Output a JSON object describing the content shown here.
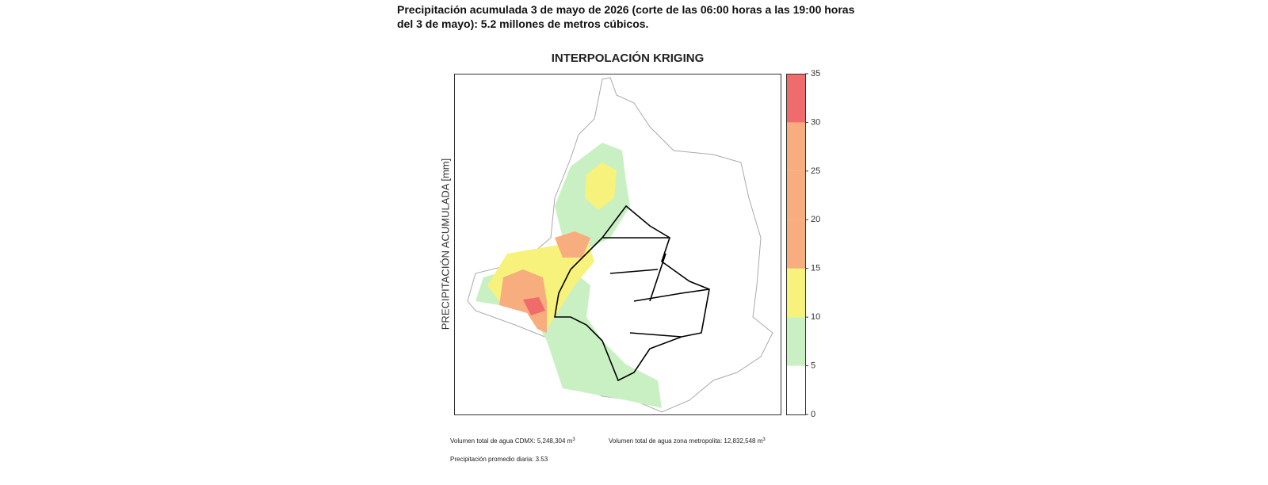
{
  "header": {
    "text": "Precipitación acumulada 3 de mayo de 2026 (corte de las 06:00 horas a las 19:00 horas del 3 de mayo): 5.2 millones de metros cúbicos."
  },
  "map": {
    "title": "INTERPOLACIÓN KRIGING",
    "axis_label": "PRECIPITACIÓN ACUMULADA [mm]",
    "colorbar": {
      "lim": [
        0,
        35
      ],
      "ticks": [
        0,
        5,
        10,
        15,
        20,
        25,
        30,
        35
      ],
      "colors": [
        "#ffffff",
        "#c9f0c3",
        "#f6f27c",
        "#f7ad7d",
        "#f7ad7d",
        "#f7ad7d",
        "#f06b6b"
      ]
    }
  },
  "footer": {
    "volume_cdmx": "Volumen total de agua CDMX: 5,248,304 m",
    "volume_cdmx_sup": "3",
    "volume_metro": "Volumen total de agua zona metropolita: 12,832,548 m",
    "volume_metro_sup": "3",
    "daily_avg": "Precipitación promedio diaria: 3.53"
  }
}
